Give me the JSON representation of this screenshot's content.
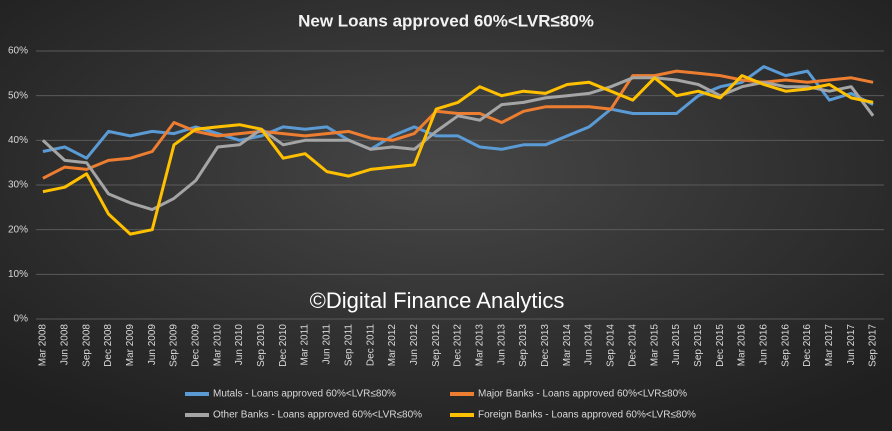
{
  "chart_data": {
    "type": "line",
    "title": "New Loans approved 60%<LVR≤80%",
    "annotation": "©Digital Finance Analytics",
    "categories": [
      "Mar 2008",
      "Jun 2008",
      "Sep 2008",
      "Dec 2008",
      "Mar 2009",
      "Jun 2009",
      "Sep 2009",
      "Dec 2009",
      "Mar 2010",
      "Jun 2010",
      "Sep 2010",
      "Dec 2010",
      "Mar 2011",
      "Jun 2011",
      "Sep 2011",
      "Dec 2011",
      "Mar 2012",
      "Jun 2012",
      "Sep 2012",
      "Dec 2012",
      "Mar 2013",
      "Jun 2013",
      "Sep 2013",
      "Dec 2013",
      "Mar 2014",
      "Jun 2014",
      "Sep 2014",
      "Dec 2014",
      "Mar 2015",
      "Jun 2015",
      "Sep 2015",
      "Dec 2015",
      "Mar 2016",
      "Jun 2016",
      "Sep 2016",
      "Dec 2016",
      "Mar 2017",
      "Jun 2017",
      "Sep 2017"
    ],
    "series": [
      {
        "name": "Mutals - Loans approved 60%<LVR≤80%",
        "color": "#5b9bd5",
        "values": [
          37.5,
          38.5,
          36,
          42,
          41,
          42,
          41.5,
          43,
          41.5,
          40,
          41,
          43,
          42.5,
          43,
          40,
          38,
          41,
          43,
          41,
          41,
          38.5,
          38,
          39,
          39,
          41,
          43,
          47,
          46,
          46,
          46,
          50,
          52,
          53,
          56.5,
          54.5,
          55.5,
          49,
          50.5,
          48
        ]
      },
      {
        "name": "Major Banks - Loans approved 60%<LVR≤80%",
        "color": "#ed7d31",
        "values": [
          31.5,
          34,
          33.5,
          35.5,
          36,
          37.5,
          44,
          42,
          41,
          41.5,
          42,
          41.5,
          41,
          41.5,
          42,
          40.5,
          40,
          41.5,
          46.5,
          46,
          46,
          44,
          46.5,
          47.5,
          47.5,
          47.5,
          47,
          54.5,
          54.5,
          55.5,
          55,
          54.5,
          53.5,
          53,
          53.5,
          53,
          53.5,
          54,
          53
        ]
      },
      {
        "name": "Other Banks - Loans approved 60%<LVR≤80%",
        "color": "#a5a5a5",
        "values": [
          40,
          35.5,
          35,
          28,
          26,
          24.5,
          27,
          31,
          38.5,
          39,
          42.5,
          39,
          40,
          40,
          40,
          38,
          38.5,
          38,
          42,
          45.5,
          44.5,
          48,
          48.5,
          49.5,
          50,
          50.5,
          52,
          54,
          54,
          53.5,
          52.5,
          50,
          52,
          53,
          52,
          52,
          51,
          52,
          45.5
        ]
      },
      {
        "name": "Foreign Banks - Loans approved 60%<LVR≤80%",
        "color": "#ffc000",
        "values": [
          28.5,
          29.5,
          32.5,
          23.5,
          19,
          20,
          39,
          42.5,
          43,
          43.5,
          42.5,
          36,
          37,
          33,
          32,
          33.5,
          34,
          34.5,
          47,
          48.5,
          52,
          50,
          51,
          50.5,
          52.5,
          53,
          51,
          49,
          54,
          50,
          51,
          49.5,
          54.5,
          52.5,
          51,
          51.5,
          52.5,
          49.5,
          48.5
        ]
      }
    ],
    "ylim": [
      0,
      60
    ],
    "yticks": [
      {
        "value": 0,
        "label": "0%"
      },
      {
        "value": 10,
        "label": "10%"
      },
      {
        "value": 20,
        "label": "20%"
      },
      {
        "value": 30,
        "label": "30%"
      },
      {
        "value": 40,
        "label": "40%"
      },
      {
        "value": 50,
        "label": "50%"
      },
      {
        "value": 60,
        "label": "60%"
      }
    ],
    "grid": true
  }
}
